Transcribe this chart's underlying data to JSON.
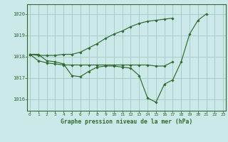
{
  "background_color": "#cce9e9",
  "grid_color": "#aacccc",
  "line_color": "#2d6b2d",
  "title": "Graphe pression niveau de la mer (hPa)",
  "xlim": [
    -0.3,
    23.3
  ],
  "ylim": [
    1015.45,
    1020.45
  ],
  "yticks": [
    1016,
    1017,
    1018,
    1019,
    1020
  ],
  "xticks": [
    0,
    1,
    2,
    3,
    4,
    5,
    6,
    7,
    8,
    9,
    10,
    11,
    12,
    13,
    14,
    15,
    16,
    17,
    18,
    19,
    20,
    21,
    22,
    23
  ],
  "series1_x": [
    0,
    1,
    2,
    3,
    4,
    5,
    6,
    7,
    8,
    9,
    10,
    11,
    12,
    13,
    14,
    15,
    16,
    17,
    18,
    19,
    20,
    21
  ],
  "series1_y": [
    1018.1,
    1018.1,
    1017.8,
    1017.75,
    1017.65,
    1017.1,
    1017.05,
    1017.3,
    1017.5,
    1017.55,
    1017.55,
    1017.5,
    1017.45,
    1017.1,
    1016.05,
    1015.85,
    1016.7,
    1016.9,
    1017.75,
    1019.05,
    1019.7,
    1020.0
  ],
  "series2_x": [
    0,
    1,
    2,
    3,
    4,
    5,
    6,
    7,
    8,
    9,
    10,
    11,
    12,
    13,
    14,
    15,
    16,
    17
  ],
  "series2_y": [
    1018.1,
    1017.8,
    1017.7,
    1017.65,
    1017.6,
    1017.6,
    1017.6,
    1017.6,
    1017.6,
    1017.6,
    1017.6,
    1017.6,
    1017.6,
    1017.6,
    1017.6,
    1017.55,
    1017.55,
    1017.75
  ],
  "series3_x": [
    0,
    1,
    2,
    3,
    4,
    5,
    6,
    7,
    8,
    9,
    10,
    11,
    12,
    13,
    14,
    15,
    16,
    17
  ],
  "series3_y": [
    1018.1,
    1018.05,
    1018.05,
    1018.05,
    1018.1,
    1018.1,
    1018.2,
    1018.4,
    1018.6,
    1018.85,
    1019.05,
    1019.2,
    1019.4,
    1019.55,
    1019.65,
    1019.7,
    1019.75,
    1019.8
  ]
}
